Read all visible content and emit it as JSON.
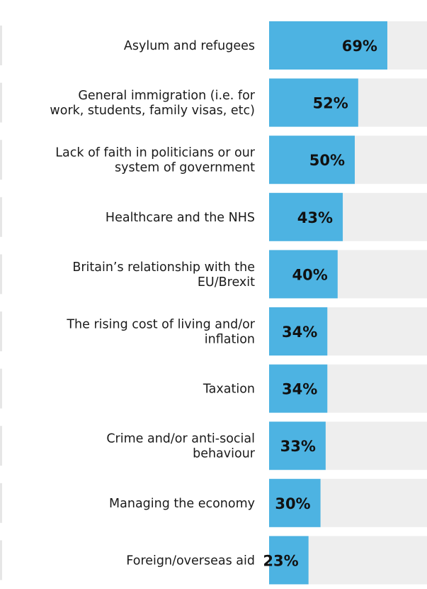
{
  "chart_data": {
    "type": "bar",
    "orientation": "horizontal",
    "categories": [
      [
        "Asylum and refugees"
      ],
      [
        "General immigration (i.e. for",
        "work, students, family visas, etc)"
      ],
      [
        "Lack of faith in politicians or our",
        "system of government"
      ],
      [
        "Healthcare and the NHS"
      ],
      [
        "Britain’s relationship with the",
        "EU/Brexit"
      ],
      [
        "The rising cost of living and/or",
        "inflation"
      ],
      [
        "Taxation"
      ],
      [
        "Crime and/or anti-social",
        "behaviour"
      ],
      [
        "Managing the economy"
      ],
      [
        "Foreign/overseas aid"
      ]
    ],
    "values": [
      69,
      52,
      50,
      43,
      40,
      34,
      34,
      33,
      30,
      23
    ],
    "value_labels": [
      "69%",
      "52%",
      "50%",
      "43%",
      "40%",
      "34%",
      "34%",
      "33%",
      "30%",
      "23%"
    ],
    "xlim": [
      0,
      100
    ],
    "unit": "%",
    "grid": false,
    "legend": "none",
    "colors": {
      "bar": "#4db3e2",
      "track": "#eeeeee",
      "row_accent": "#e6e6e6",
      "label_text": "#1a1a1a",
      "value_text": "#111111"
    }
  }
}
